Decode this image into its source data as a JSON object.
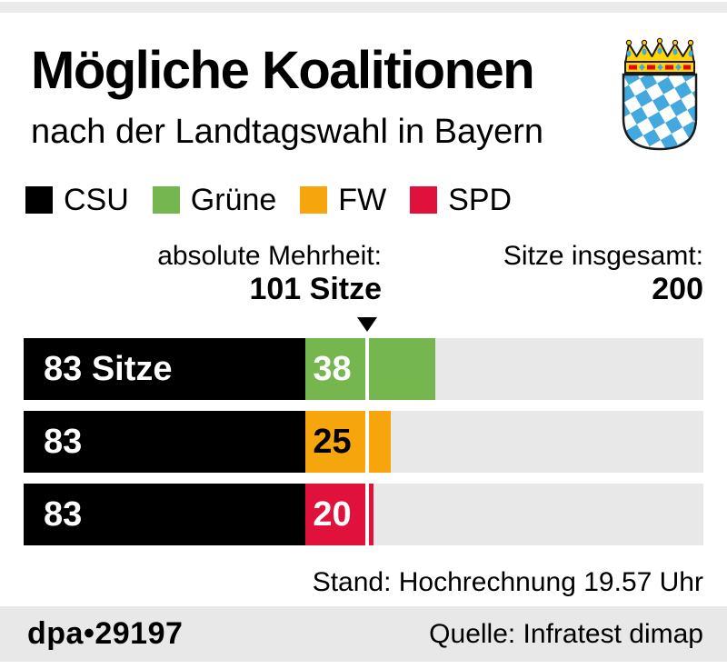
{
  "colors": {
    "topbar_gray": "#ebebeb",
    "band_gray": "#e8e8e8",
    "csu_black": "#000000",
    "gruene_green": "#76b64e",
    "fw_orange": "#f7a50d",
    "spd_red": "#e0113b",
    "lozenge_blue": "#42a8de",
    "crown_gold": "#ffd505"
  },
  "header": {
    "title": "Mögliche Koalitionen",
    "subtitle": "nach der Landtagswahl in Bayern",
    "crest": "bayerisches-staatswappen"
  },
  "legend": {
    "items": [
      {
        "label": "CSU",
        "color": "#000000"
      },
      {
        "label": "Grüne",
        "color": "#76b64e"
      },
      {
        "label": "FW",
        "color": "#f7a50d"
      },
      {
        "label": "SPD",
        "color": "#e0113b"
      }
    ]
  },
  "annotations": {
    "majority_label": "absolute Mehrheit:",
    "majority_value": "101 Sitze",
    "total_label": "Sitze insgesamt:",
    "total_value": "200"
  },
  "chart_data": {
    "type": "bar",
    "orientation": "horizontal",
    "title": "Mögliche Koalitionen nach der Landtagswahl in Bayern",
    "total_seats": 200,
    "majority_seats": 101,
    "track_color": "#e8e8e8",
    "majority_line_color": "#ffffff",
    "rows": [
      {
        "segments": [
          {
            "party": "CSU",
            "seats": 83,
            "label": "83 Sitze",
            "color": "#000000",
            "text_color": "#ffffff"
          },
          {
            "party": "Grüne",
            "seats": 38,
            "label": "38",
            "color": "#76b64e",
            "text_color": "#ffffff"
          }
        ]
      },
      {
        "segments": [
          {
            "party": "CSU",
            "seats": 83,
            "label": "83",
            "color": "#000000",
            "text_color": "#ffffff"
          },
          {
            "party": "FW",
            "seats": 25,
            "label": "25",
            "color": "#f7a50d",
            "text_color": "#000000"
          }
        ]
      },
      {
        "segments": [
          {
            "party": "CSU",
            "seats": 83,
            "label": "83",
            "color": "#000000",
            "text_color": "#ffffff"
          },
          {
            "party": "SPD",
            "seats": 20,
            "label": "20",
            "color": "#e0113b",
            "text_color": "#ffffff"
          }
        ]
      }
    ]
  },
  "footer": {
    "status": "Stand: Hochrechnung 19.57 Uhr",
    "credit": "dpa•29197",
    "source": "Quelle: Infratest dimap"
  }
}
